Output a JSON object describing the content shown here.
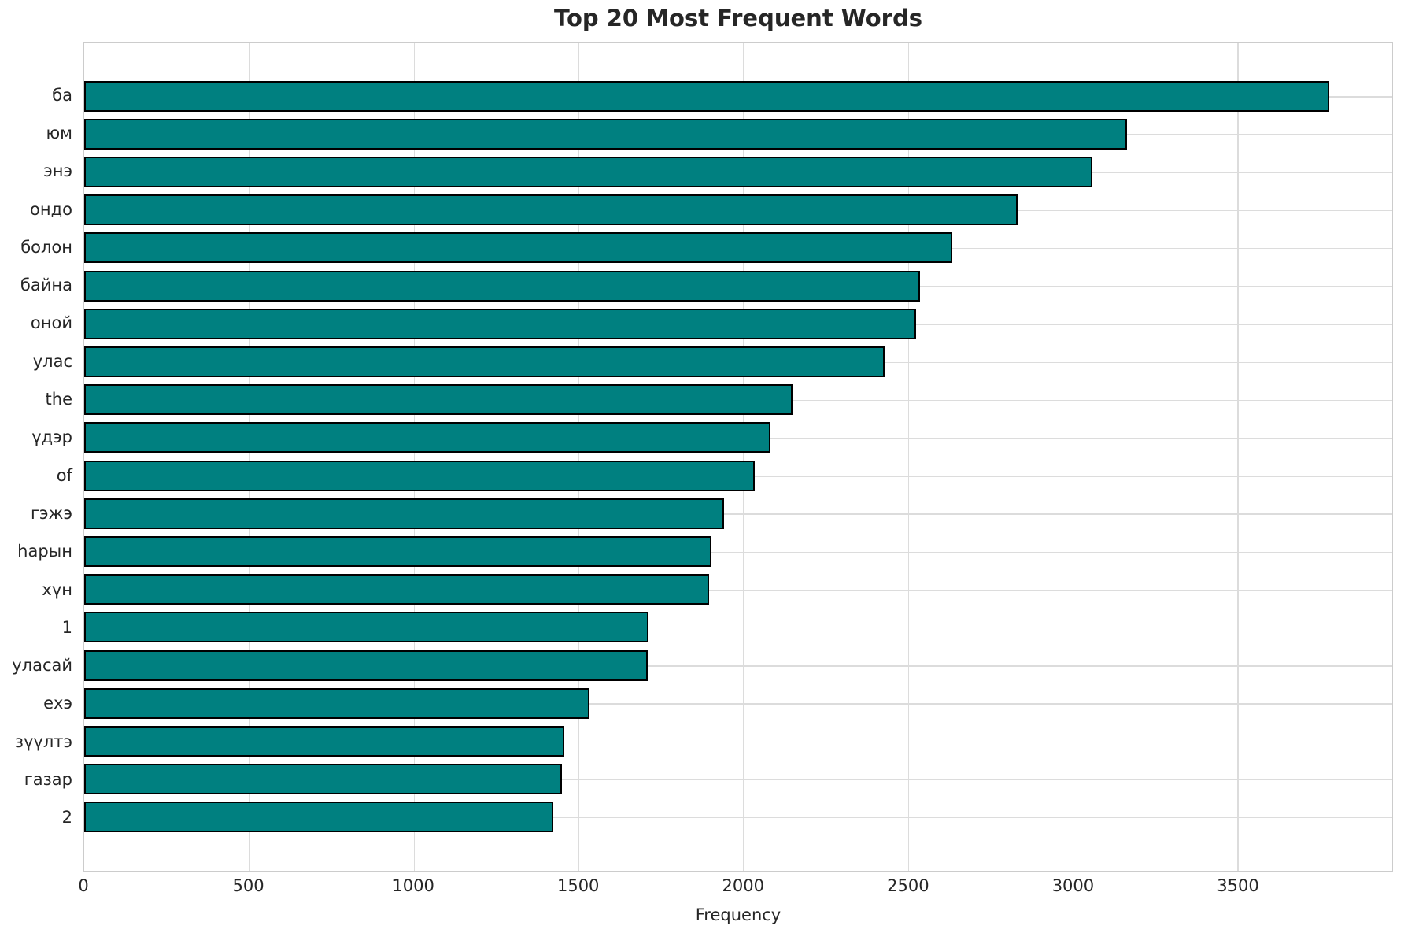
{
  "chart_data": {
    "type": "bar",
    "orientation": "horizontal",
    "title": "Top 20 Most Frequent Words",
    "xlabel": "Frequency",
    "ylabel": "",
    "categories": [
      "ба",
      "юм",
      "энэ",
      "ондо",
      "болон",
      "байна",
      "оной",
      "улас",
      "the",
      "үдэр",
      "of",
      "гэжэ",
      "һарын",
      "хүн",
      "1",
      "уласай",
      "ехэ",
      "зүүлтэ",
      "газар",
      "2"
    ],
    "values": [
      3780,
      3165,
      3060,
      2834,
      2634,
      2537,
      2525,
      2430,
      2150,
      2084,
      2034,
      1943,
      1904,
      1897,
      1713,
      1710,
      1533,
      1457,
      1451,
      1423
    ],
    "x_ticks": [
      0,
      500,
      1000,
      1500,
      2000,
      2500,
      3000,
      3500
    ],
    "xlim": [
      0,
      3970
    ],
    "grid": true,
    "bar_color": "#008080",
    "bar_edge_color": "#000000",
    "grid_color": "#dcdcdc",
    "text_color": "#262626"
  }
}
